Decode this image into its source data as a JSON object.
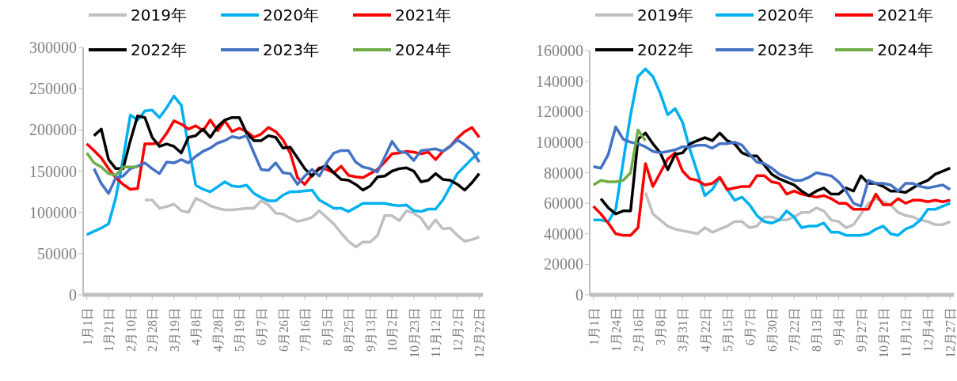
{
  "chart_data": [
    {
      "type": "line",
      "legend": "top",
      "ylim": [
        0,
        300000
      ],
      "yticks": [
        0,
        50000,
        100000,
        150000,
        200000,
        250000,
        300000
      ],
      "categories": [
        "1月1日",
        null,
        null,
        "1月21日",
        null,
        null,
        "2月10日",
        null,
        null,
        "2月28日",
        null,
        null,
        "3月19日",
        null,
        null,
        "4月8日",
        null,
        null,
        "4月28日",
        null,
        null,
        "5月19日",
        null,
        null,
        "6月7日",
        null,
        null,
        "6月26日",
        null,
        null,
        "7月16日",
        null,
        null,
        "8月5日",
        null,
        null,
        "8月25日",
        null,
        null,
        "9月13日",
        null,
        null,
        "10月2日",
        null,
        null,
        "10月23日",
        null,
        null,
        "11月12日",
        null,
        null,
        "12月2日",
        null,
        null,
        "12月22日"
      ],
      "series": [
        {
          "name": "2019年",
          "color": "#bfbfbf",
          "values": [
            null,
            null,
            null,
            null,
            null,
            null,
            null,
            null,
            115000,
            115000,
            105000,
            107000,
            110000,
            102000,
            100000,
            117000,
            113000,
            108000,
            105000,
            103000,
            103000,
            104000,
            105000,
            105000,
            114000,
            109000,
            99000,
            98000,
            93000,
            89000,
            91000,
            94000,
            102000,
            94000,
            86000,
            75000,
            65000,
            58000,
            64000,
            64000,
            72000,
            96000,
            96000,
            90000,
            102000,
            99000,
            93000,
            80000,
            91000,
            80000,
            81000,
            72000,
            65000,
            67000,
            70000
          ]
        },
        {
          "name": "2020年",
          "color": "#00b0f0",
          "values": [
            73000,
            77000,
            81000,
            86000,
            118000,
            165000,
            218000,
            212000,
            223000,
            224000,
            215000,
            227000,
            241000,
            230000,
            180000,
            133000,
            128000,
            125000,
            131000,
            137000,
            132000,
            131000,
            133000,
            123000,
            118000,
            114000,
            114000,
            121000,
            125000,
            125000,
            126000,
            127000,
            115000,
            110000,
            105000,
            105000,
            101000,
            106000,
            111000,
            111000,
            111000,
            111000,
            109000,
            108000,
            109000,
            102000,
            101000,
            104000,
            104000,
            115000,
            131000,
            147000,
            156000,
            165000,
            173000
          ]
        },
        {
          "name": "2021年",
          "color": "#ff0000",
          "values": [
            183000,
            175000,
            166000,
            153000,
            142000,
            134000,
            128000,
            129000,
            183000,
            183000,
            184000,
            196000,
            211000,
            207000,
            201000,
            205000,
            199000,
            212000,
            199000,
            211000,
            198000,
            202000,
            198000,
            191000,
            195000,
            203000,
            198000,
            188000,
            172000,
            142000,
            134000,
            145000,
            154000,
            152000,
            148000,
            156000,
            145000,
            143000,
            142000,
            147000,
            152000,
            161000,
            171000,
            172000,
            174000,
            173000,
            171000,
            173000,
            164000,
            174000,
            180000,
            190000,
            198000,
            203000,
            191000
          ]
        },
        {
          "name": "2022年",
          "color": "#000000",
          "values": [
            null,
            193000,
            201000,
            164000,
            153000,
            153000,
            187000,
            217000,
            215000,
            191000,
            180000,
            183000,
            180000,
            172000,
            191000,
            193000,
            201000,
            191000,
            204000,
            212000,
            215000,
            215000,
            196000,
            187000,
            187000,
            193000,
            191000,
            178000,
            179000,
            166000,
            153000,
            144000,
            153000,
            157000,
            148000,
            140000,
            139000,
            134000,
            127000,
            132000,
            143000,
            144000,
            150000,
            153000,
            154000,
            150000,
            137000,
            139000,
            147000,
            140000,
            139000,
            134000,
            127000,
            136000,
            147000
          ]
        },
        {
          "name": "2023年",
          "color": "#4472c4",
          "values": [
            null,
            153000,
            135000,
            123000,
            142000,
            144000,
            153000,
            156000,
            160000,
            153000,
            147000,
            161000,
            160000,
            164000,
            160000,
            168000,
            174000,
            178000,
            184000,
            187000,
            192000,
            190000,
            193000,
            172000,
            152000,
            151000,
            160000,
            148000,
            147000,
            134000,
            144000,
            152000,
            144000,
            160000,
            172000,
            175000,
            175000,
            161000,
            155000,
            153000,
            149000,
            167000,
            186000,
            174000,
            172000,
            163000,
            175000,
            176000,
            177000,
            174000,
            180000,
            188000,
            182000,
            175000,
            161000
          ]
        },
        {
          "name": "2024年",
          "color": "#70ad47",
          "values": [
            172000,
            160000,
            155000,
            147000,
            145000,
            155000,
            155000,
            155000,
            null,
            null,
            null,
            null,
            null,
            null,
            null,
            null,
            null,
            null,
            null,
            null,
            null,
            null,
            null,
            null,
            null,
            null,
            null,
            null,
            null,
            null,
            null,
            null,
            null,
            null,
            null,
            null,
            null,
            null,
            null,
            null,
            null,
            null,
            null,
            null,
            null,
            null,
            null,
            null,
            null,
            null,
            null,
            null,
            null,
            null,
            null
          ]
        }
      ]
    },
    {
      "type": "line",
      "legend": "top",
      "ylim": [
        0,
        160000
      ],
      "yticks": [
        0,
        20000,
        40000,
        60000,
        80000,
        100000,
        120000,
        140000,
        160000
      ],
      "categories": [
        "1月1日",
        null,
        null,
        "1月24日",
        null,
        null,
        "2月16日",
        null,
        null,
        "3月8日",
        null,
        null,
        "3月31日",
        null,
        null,
        "4月22日",
        null,
        null,
        "5月15日",
        null,
        null,
        "6月7日",
        null,
        null,
        "6月30日",
        null,
        null,
        "7月22日",
        null,
        null,
        "8月13日",
        null,
        null,
        "9月4日",
        null,
        null,
        "9月27日",
        null,
        null,
        "10月21日",
        null,
        null,
        "11月12日",
        null,
        null,
        "12月4日",
        null,
        null,
        "12月27日"
      ],
      "series": [
        {
          "name": "2019年",
          "color": "#bfbfbf",
          "values": [
            null,
            null,
            null,
            null,
            null,
            null,
            null,
            67000,
            53000,
            49000,
            45000,
            43000,
            42000,
            41000,
            40000,
            44000,
            41000,
            43000,
            45000,
            48000,
            48000,
            44000,
            45000,
            51000,
            51000,
            49000,
            49000,
            51000,
            54000,
            54000,
            57000,
            55000,
            49000,
            48000,
            44000,
            46000,
            53000,
            60000,
            63000,
            61000,
            59000,
            54000,
            52000,
            51000,
            49000,
            48000,
            46000,
            46000,
            48000
          ]
        },
        {
          "name": "2020年",
          "color": "#00b0f0",
          "values": [
            49000,
            49000,
            48000,
            56000,
            87000,
            118000,
            143000,
            148000,
            143000,
            132000,
            118000,
            122000,
            113000,
            95000,
            80000,
            65000,
            69000,
            77000,
            69000,
            62000,
            64000,
            59000,
            52000,
            48000,
            47000,
            49000,
            55000,
            51000,
            44000,
            45000,
            45000,
            47000,
            41000,
            41000,
            39000,
            39000,
            39000,
            40000,
            43000,
            45000,
            40000,
            39000,
            43000,
            45000,
            49000,
            56000,
            56000,
            58000,
            60000
          ]
        },
        {
          "name": "2021年",
          "color": "#ff0000",
          "values": [
            58000,
            53000,
            47000,
            40000,
            39000,
            39000,
            44000,
            86000,
            71000,
            80000,
            89000,
            93000,
            81000,
            76000,
            75000,
            72000,
            73000,
            77000,
            69000,
            70000,
            71000,
            71000,
            78000,
            78000,
            74000,
            73000,
            66000,
            68000,
            66000,
            65000,
            64000,
            65000,
            63000,
            60000,
            60000,
            56000,
            56000,
            56000,
            66000,
            59000,
            59000,
            63000,
            60000,
            62000,
            62000,
            61000,
            62000,
            61000,
            62000
          ]
        },
        {
          "name": "2022年",
          "color": "#000000",
          "values": [
            null,
            63000,
            57000,
            53000,
            55000,
            55000,
            102000,
            106000,
            99000,
            93000,
            82000,
            92000,
            93000,
            99000,
            101000,
            103000,
            101000,
            106000,
            101000,
            99000,
            93000,
            91000,
            91000,
            85000,
            79000,
            76000,
            74000,
            72000,
            68000,
            65000,
            68000,
            70000,
            66000,
            66000,
            70000,
            68000,
            78000,
            73000,
            73000,
            71000,
            68000,
            68000,
            67000,
            70000,
            73000,
            75000,
            79000,
            81000,
            83000
          ]
        },
        {
          "name": "2023年",
          "color": "#4472c4",
          "values": [
            84000,
            83000,
            92000,
            110000,
            102000,
            100000,
            99000,
            97000,
            94000,
            93000,
            94000,
            95000,
            97000,
            97000,
            98000,
            98000,
            96000,
            99000,
            99000,
            100000,
            98000,
            92000,
            87000,
            86000,
            83000,
            79000,
            77000,
            75000,
            75000,
            77000,
            80000,
            79000,
            78000,
            74000,
            68000,
            60000,
            58000,
            75000,
            73000,
            73000,
            72000,
            68000,
            73000,
            73000,
            71000,
            70000,
            71000,
            72000,
            69000
          ]
        },
        {
          "name": "2024年",
          "color": "#70ad47",
          "values": [
            72000,
            75000,
            74000,
            74000,
            75000,
            80000,
            108000,
            101000,
            null,
            null,
            null,
            null,
            null,
            null,
            null,
            null,
            null,
            null,
            null,
            null,
            null,
            null,
            null,
            null,
            null,
            null,
            null,
            null,
            null,
            null,
            null,
            null,
            null,
            null,
            null,
            null,
            null,
            null,
            null,
            null,
            null,
            null,
            null,
            null,
            null,
            null,
            null,
            null,
            null
          ]
        }
      ]
    }
  ]
}
